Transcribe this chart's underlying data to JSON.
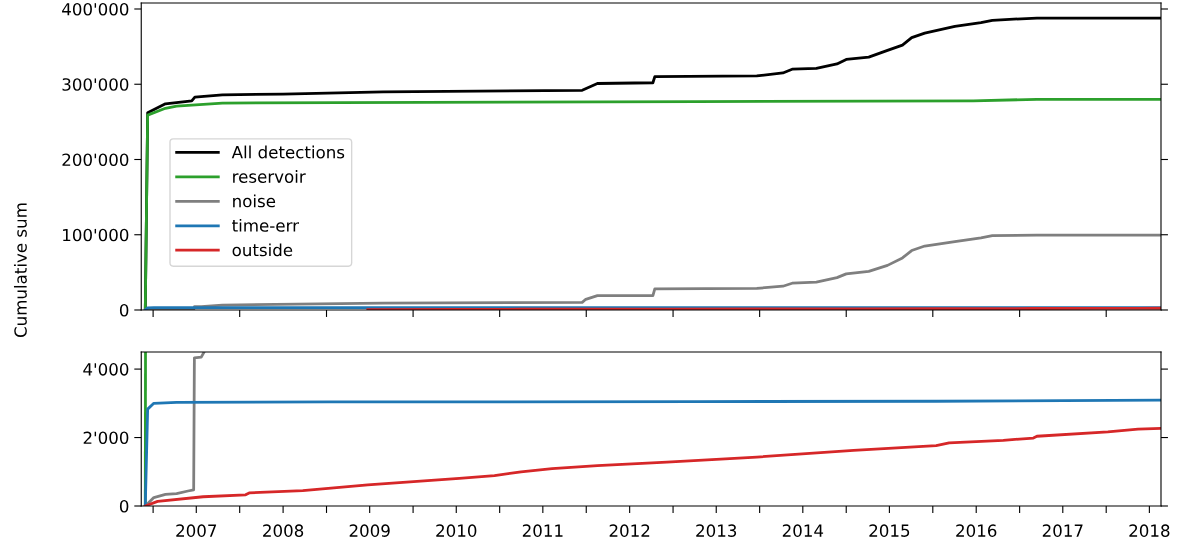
{
  "chart_data": [
    {
      "type": "line",
      "ylabel": "Cumulative sum",
      "legend": "left",
      "grid": false,
      "tick_labels": "y",
      "xlim": [
        "2006-11-12",
        "2018-08-20"
      ],
      "ylim": [
        0,
        408000
      ],
      "yticks": [
        {
          "value": 0,
          "label": "0"
        },
        {
          "value": 100000,
          "label": "100'000"
        },
        {
          "value": 200000,
          "label": "200'000"
        },
        {
          "value": 300000,
          "label": "300'000"
        },
        {
          "value": 400000,
          "label": "400'000"
        }
      ],
      "xticks": [
        {
          "value": "2007-01-01",
          "label": null
        },
        {
          "value": "2008-01-01",
          "label": null
        },
        {
          "value": "2009-01-01",
          "label": null
        },
        {
          "value": "2010-01-01",
          "label": null
        },
        {
          "value": "2011-01-01",
          "label": null
        },
        {
          "value": "2012-01-01",
          "label": null
        },
        {
          "value": "2013-01-01",
          "label": null
        },
        {
          "value": "2014-01-01",
          "label": null
        },
        {
          "value": "2015-01-01",
          "label": null
        },
        {
          "value": "2016-01-01",
          "label": null
        },
        {
          "value": "2017-01-01",
          "label": null
        },
        {
          "value": "2018-01-01",
          "label": null
        }
      ],
      "series": [
        {
          "name": "All detections",
          "color": "#000000",
          "x": [
            "2006-11-29",
            "2006-12-09",
            "2007-02-22",
            "2007-06-13",
            "2007-06-26",
            "2007-10-20",
            "2008-07-01",
            "2009-08-28",
            "2011-12-15",
            "2012-02-17",
            "2012-10-08",
            "2012-10-16",
            "2013-12-20",
            "2014-04-09",
            "2014-05-18",
            "2014-08-28",
            "2014-11-23",
            "2015-01-01",
            "2015-04-06",
            "2015-06-24",
            "2015-08-26",
            "2015-10-04",
            "2015-11-28",
            "2016-04-03",
            "2016-07-22",
            "2016-09-08",
            "2017-03-15",
            "2018-08-16"
          ],
          "values": [
            0,
            262000,
            274000,
            278000,
            283000,
            286000,
            287000,
            290000,
            292000,
            301000,
            302000,
            310000,
            311000,
            315000,
            320000,
            321000,
            327000,
            333000,
            336000,
            345000,
            352000,
            362000,
            368000,
            377000,
            382000,
            385000,
            388000,
            388000
          ]
        },
        {
          "name": "reservoir",
          "color": "#2ca02c",
          "x": [
            "2006-11-29",
            "2006-12-09",
            "2007-02-22",
            "2007-04-10",
            "2007-10-20",
            "2013-04-12",
            "2016-06-20",
            "2017-03-15",
            "2018-08-16"
          ],
          "values": [
            0,
            259000,
            268000,
            271000,
            275000,
            277000,
            278000,
            280000,
            280000
          ]
        },
        {
          "name": "noise",
          "color": "#7f7f7f",
          "x": [
            "2006-11-29",
            "2007-01-04",
            "2007-02-22",
            "2007-04-10",
            "2007-05-28",
            "2007-06-21",
            "2007-06-24",
            "2007-07-23",
            "2007-10-20",
            "2009-08-28",
            "2011-12-15",
            "2011-12-30",
            "2012-02-17",
            "2012-10-08",
            "2012-10-16",
            "2013-12-20",
            "2014-04-09",
            "2014-05-18",
            "2014-08-28",
            "2014-11-23",
            "2015-01-01",
            "2015-04-06",
            "2015-06-24",
            "2015-08-26",
            "2015-10-04",
            "2015-11-28",
            "2016-04-03",
            "2016-07-22",
            "2016-09-08",
            "2017-03-15",
            "2018-08-16"
          ],
          "values": [
            0,
            247,
            337,
            360,
            438,
            472,
            4330,
            4350,
            6600,
            9150,
            10200,
            14200,
            19000,
            19000,
            28200,
            28700,
            31600,
            35600,
            37100,
            43000,
            48000,
            51400,
            59300,
            69200,
            79000,
            85000,
            91000,
            95900,
            98900,
            99400,
            99400
          ]
        },
        {
          "name": "time-err",
          "color": "#1f77b4",
          "x": [
            "2006-11-29",
            "2006-12-09",
            "2007-01-04",
            "2007-04-10",
            "2009-01-15",
            "2013-04-15",
            "2016-01-15",
            "2018-08-16"
          ],
          "values": [
            0,
            2830,
            3000,
            3030,
            3040,
            3050,
            3060,
            3090
          ]
        },
        {
          "name": "outside",
          "color": "#d62728",
          "x": [
            "2009-06-24",
            "2010-07-15",
            "2010-12-10",
            "2011-04-01",
            "2011-08-10",
            "2012-02-17",
            "2012-12-06",
            "2013-12-20",
            "2015-02-01",
            "2016-01-15",
            "2016-03-10",
            "2016-10-24",
            "2017-02-28",
            "2017-03-15",
            "2018-01-08",
            "2018-05-15",
            "2018-08-16"
          ],
          "values": [
            600,
            800,
            900,
            1000,
            1100,
            1200,
            1300,
            1400,
            1600,
            1800,
            1800,
            1900,
            2000,
            2000,
            2200,
            2200,
            2300
          ]
        }
      ]
    },
    {
      "type": "line",
      "grid": false,
      "xlim": [
        "2006-11-12",
        "2018-08-20"
      ],
      "ylim": [
        0,
        4500
      ],
      "yticks": [
        {
          "value": 0,
          "label": "0"
        },
        {
          "value": 2000,
          "label": "2'000"
        },
        {
          "value": 4000,
          "label": "4'000"
        }
      ],
      "xticks": [
        {
          "value": "2007-01-01",
          "label": null
        },
        {
          "value": "2007-07-02",
          "label": "2007"
        },
        {
          "value": "2008-01-01",
          "label": null
        },
        {
          "value": "2008-07-02",
          "label": "2008"
        },
        {
          "value": "2009-01-01",
          "label": null
        },
        {
          "value": "2009-07-02",
          "label": "2009"
        },
        {
          "value": "2010-01-01",
          "label": null
        },
        {
          "value": "2010-07-02",
          "label": "2010"
        },
        {
          "value": "2011-01-01",
          "label": null
        },
        {
          "value": "2011-07-02",
          "label": "2011"
        },
        {
          "value": "2012-01-01",
          "label": null
        },
        {
          "value": "2012-07-02",
          "label": "2012"
        },
        {
          "value": "2013-01-01",
          "label": null
        },
        {
          "value": "2013-07-02",
          "label": "2013"
        },
        {
          "value": "2014-01-01",
          "label": null
        },
        {
          "value": "2014-07-02",
          "label": "2014"
        },
        {
          "value": "2015-01-01",
          "label": null
        },
        {
          "value": "2015-07-02",
          "label": "2015"
        },
        {
          "value": "2016-01-01",
          "label": null
        },
        {
          "value": "2016-07-02",
          "label": "2016"
        },
        {
          "value": "2017-01-01",
          "label": null
        },
        {
          "value": "2017-07-02",
          "label": "2017"
        },
        {
          "value": "2018-01-01",
          "label": null
        },
        {
          "value": "2018-07-02",
          "label": "2018"
        }
      ],
      "series": [
        {
          "color": "#2ca02c",
          "x": [
            "2006-11-29",
            "2006-11-30"
          ],
          "values": [
            0,
            4500
          ]
        },
        {
          "color": "#7f7f7f",
          "x": [
            "2006-11-29",
            "2007-01-04",
            "2007-02-22",
            "2007-04-10",
            "2007-05-28",
            "2007-06-21",
            "2007-06-24",
            "2007-07-23",
            "2007-08-04"
          ],
          "values": [
            0,
            247,
            337,
            360,
            438,
            472,
            4330,
            4350,
            4500
          ]
        },
        {
          "color": "#1f77b4",
          "x": [
            "2006-11-29",
            "2006-12-09",
            "2007-01-04",
            "2007-04-10",
            "2009-01-15",
            "2013-04-15",
            "2016-01-15",
            "2018-08-16"
          ],
          "values": [
            0,
            2830,
            3000,
            3030,
            3040,
            3050,
            3060,
            3090
          ]
        },
        {
          "color": "#d62728",
          "x": [
            "2006-11-29",
            "2007-01-20",
            "2007-07-31",
            "2008-01-26",
            "2008-02-10",
            "2008-09-23",
            "2009-06-24",
            "2010-07-15",
            "2010-12-10",
            "2011-04-01",
            "2011-08-10",
            "2012-02-17",
            "2012-12-06",
            "2013-12-20",
            "2015-02-01",
            "2016-01-15",
            "2016-03-10",
            "2016-10-24",
            "2017-02-28",
            "2017-03-15",
            "2018-01-08",
            "2018-05-15",
            "2018-08-16"
          ],
          "values": [
            0,
            135,
            270,
            326,
            382,
            450,
            618,
            809,
            888,
            1000,
            1090,
            1180,
            1280,
            1430,
            1626,
            1767,
            1843,
            1919,
            1984,
            2038,
            2168,
            2244,
            2266
          ]
        }
      ]
    }
  ]
}
